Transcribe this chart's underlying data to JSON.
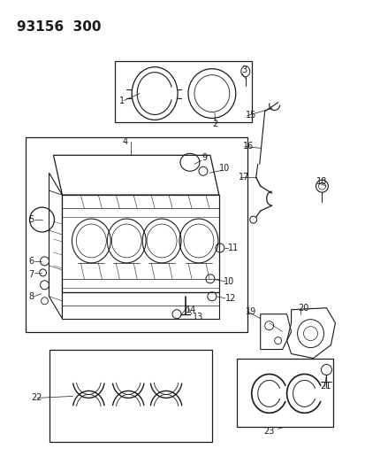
{
  "title": "93156  300",
  "title_fontsize": 11,
  "bg_color": "#ffffff",
  "line_color": "#1a1a1a",
  "label_fontsize": 7,
  "figsize": [
    4.14,
    5.33
  ],
  "dpi": 100
}
